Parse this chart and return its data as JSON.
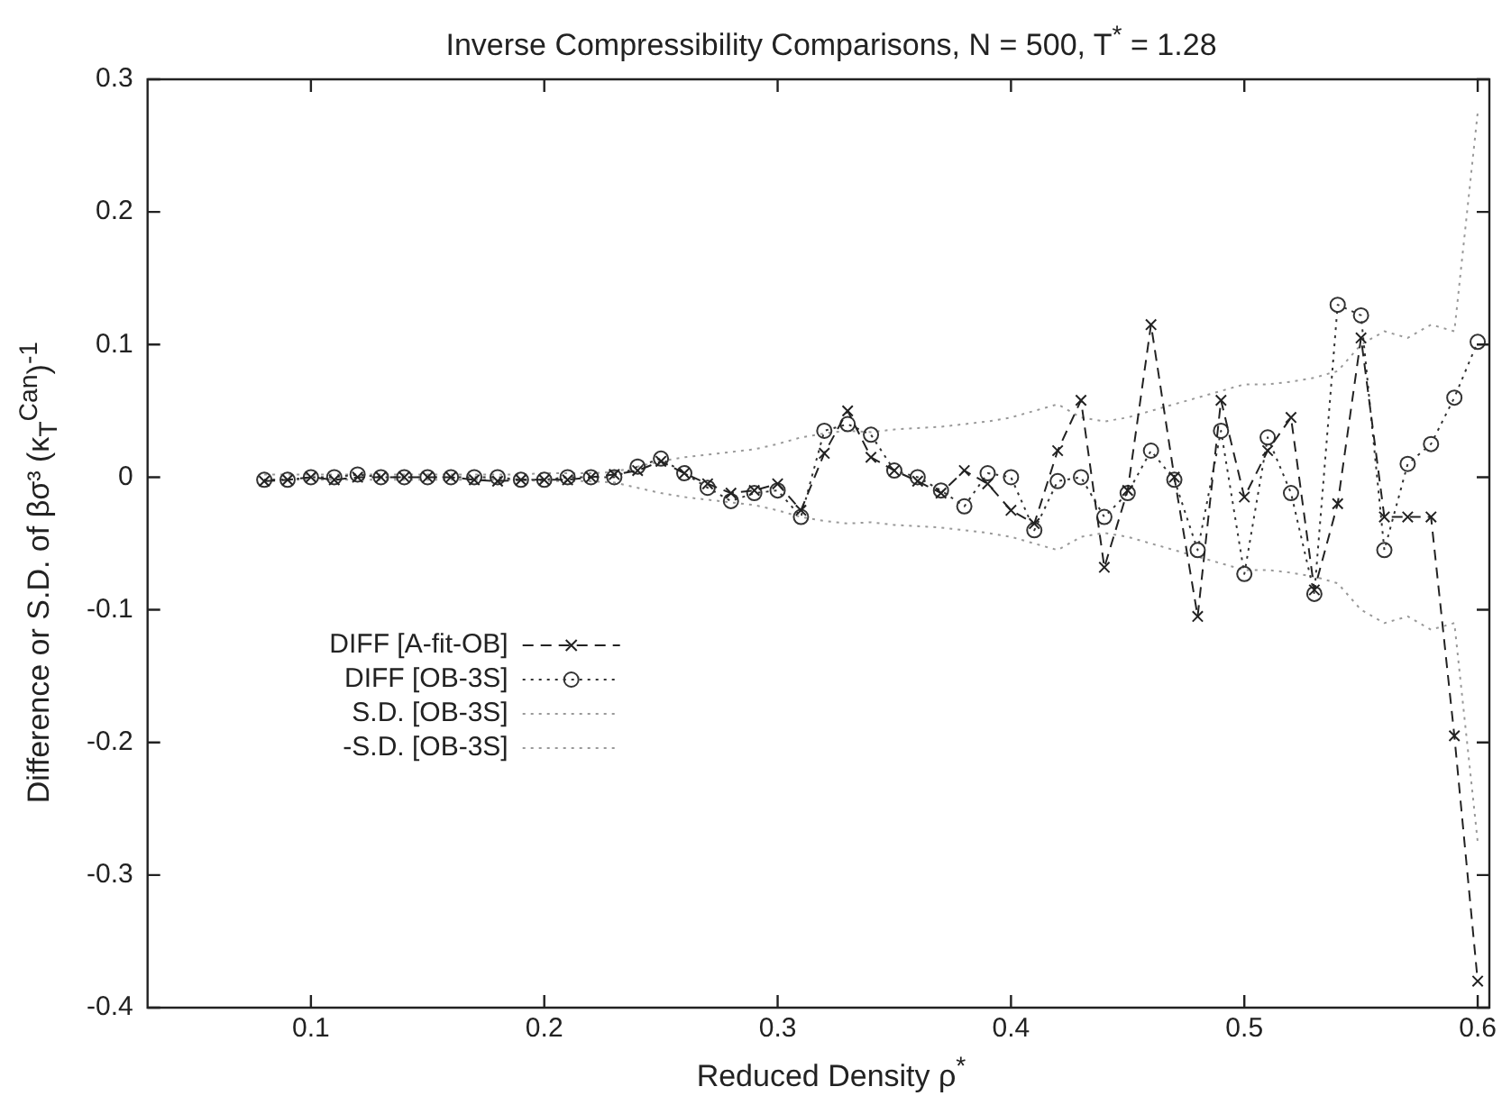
{
  "chart_data": {
    "type": "line",
    "title": "Inverse Compressibility Comparisons, N = 500, T$^{*}$ = 1.28",
    "xlabel": "Reduced Density ρ$^{*}$",
    "ylabel": "Difference or S.D. of βσ³ (κ$_{T}$$^{Can}$)$^{-1}$",
    "x": [
      0.08,
      0.09,
      0.1,
      0.11,
      0.12,
      0.13,
      0.14,
      0.15,
      0.16,
      0.17,
      0.18,
      0.19,
      0.2,
      0.21,
      0.22,
      0.23,
      0.24,
      0.25,
      0.26,
      0.27,
      0.28,
      0.29,
      0.3,
      0.31,
      0.32,
      0.33,
      0.34,
      0.35,
      0.36,
      0.37,
      0.38,
      0.39,
      0.4,
      0.41,
      0.42,
      0.43,
      0.44,
      0.45,
      0.46,
      0.47,
      0.48,
      0.49,
      0.5,
      0.51,
      0.52,
      0.53,
      0.54,
      0.55,
      0.56,
      0.57,
      0.58,
      0.59,
      0.6
    ],
    "series": [
      {
        "name": "DIFF [A-fit-OB]",
        "color": "#222222",
        "marker": "cross",
        "line_style": "dashed",
        "values": [
          -0.003,
          -0.002,
          0,
          -0.002,
          0,
          0,
          0,
          0,
          0,
          -0.002,
          -0.003,
          -0.002,
          -0.002,
          -0.002,
          0,
          0.002,
          0.005,
          0.012,
          0.003,
          -0.005,
          -0.012,
          -0.01,
          -0.005,
          -0.025,
          0.018,
          0.05,
          0.015,
          0.005,
          -0.003,
          -0.012,
          0.005,
          -0.005,
          -0.025,
          -0.035,
          0.02,
          0.058,
          -0.068,
          -0.01,
          0.115,
          0,
          -0.105,
          0.058,
          -0.015,
          0.02,
          0.045,
          -0.085,
          -0.02,
          0.105,
          -0.03,
          -0.03,
          -0.03,
          -0.195,
          -0.38
        ]
      },
      {
        "name": "DIFF [OB-3S]",
        "color": "#333333",
        "marker": "circle",
        "line_style": "dotted",
        "values": [
          -0.002,
          -0.002,
          0,
          0,
          0.002,
          0,
          0,
          0,
          0,
          0,
          0,
          -0.002,
          -0.002,
          0,
          0,
          0,
          0.008,
          0.014,
          0.003,
          -0.008,
          -0.018,
          -0.012,
          -0.01,
          -0.03,
          0.035,
          0.04,
          0.032,
          0.005,
          0,
          -0.01,
          -0.022,
          0.003,
          0,
          -0.04,
          -0.003,
          0,
          -0.03,
          -0.012,
          0.02,
          -0.002,
          -0.055,
          0.035,
          -0.073,
          0.03,
          -0.012,
          -0.088,
          0.13,
          0.122,
          -0.055,
          0.01,
          0.025,
          0.06,
          0.102
        ]
      },
      {
        "name": "S.D. [OB-3S]",
        "color": "#999999",
        "marker": "none",
        "line_style": "dotted",
        "values": [
          0.002,
          0.002,
          0.002,
          0.002,
          0.002,
          0.002,
          0.002,
          0.002,
          0.002,
          0.002,
          0.002,
          0.002,
          0.003,
          0.003,
          0.003,
          0.004,
          0.008,
          0.012,
          0.015,
          0.017,
          0.019,
          0.021,
          0.025,
          0.03,
          0.033,
          0.035,
          0.034,
          0.036,
          0.037,
          0.038,
          0.04,
          0.042,
          0.045,
          0.05,
          0.055,
          0.045,
          0.042,
          0.045,
          0.05,
          0.055,
          0.06,
          0.065,
          0.07,
          0.07,
          0.072,
          0.075,
          0.08,
          0.1,
          0.11,
          0.105,
          0.115,
          0.11,
          0.275
        ]
      },
      {
        "name": "-S.D. [OB-3S]",
        "color": "#999999",
        "marker": "none",
        "line_style": "dotted",
        "values": [
          -0.002,
          -0.002,
          -0.002,
          -0.002,
          -0.002,
          -0.002,
          -0.002,
          -0.002,
          -0.002,
          -0.002,
          -0.002,
          -0.002,
          -0.003,
          -0.003,
          -0.003,
          -0.004,
          -0.008,
          -0.012,
          -0.015,
          -0.017,
          -0.019,
          -0.021,
          -0.025,
          -0.03,
          -0.033,
          -0.035,
          -0.034,
          -0.036,
          -0.037,
          -0.038,
          -0.04,
          -0.042,
          -0.045,
          -0.05,
          -0.055,
          -0.045,
          -0.042,
          -0.045,
          -0.05,
          -0.055,
          -0.06,
          -0.065,
          -0.07,
          -0.07,
          -0.072,
          -0.075,
          -0.08,
          -0.1,
          -0.11,
          -0.105,
          -0.115,
          -0.11,
          -0.275
        ]
      }
    ],
    "xlim": [
      0.03,
      0.605
    ],
    "xticks": [
      0.1,
      0.2,
      0.3,
      0.4,
      0.5,
      0.6
    ],
    "ylim": [
      -0.4,
      0.3
    ],
    "yticks": [
      -0.4,
      -0.3,
      -0.2,
      -0.1,
      0,
      0.1,
      0.2,
      0.3
    ],
    "grid": false,
    "legend": "bottom left"
  }
}
